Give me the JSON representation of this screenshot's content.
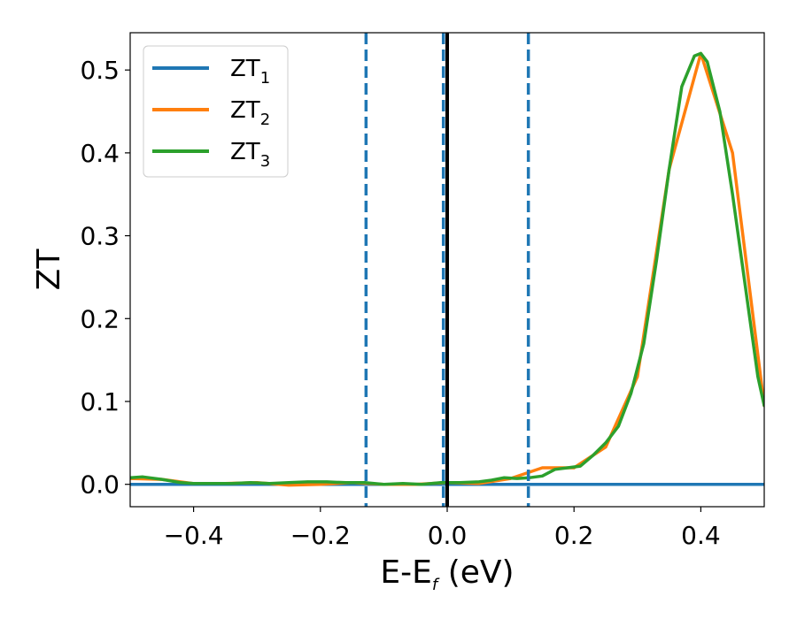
{
  "chart_data": {
    "type": "line",
    "xlabel": {
      "main": "E-E",
      "sub": "f",
      "suffix": " (eV)"
    },
    "ylabel": "ZT",
    "xlim": [
      -0.5,
      0.5
    ],
    "ylim": [
      -0.027,
      0.545
    ],
    "x_ticks": [
      -0.4,
      -0.2,
      0.0,
      0.2,
      0.4
    ],
    "x_tick_labels": [
      "−0.4",
      "−0.2",
      "0.0",
      "0.2",
      "0.4"
    ],
    "y_ticks": [
      0.0,
      0.1,
      0.2,
      0.3,
      0.4,
      0.5
    ],
    "y_tick_labels": [
      "0.0",
      "0.1",
      "0.2",
      "0.3",
      "0.4",
      "0.5"
    ],
    "grid": false,
    "legend": {
      "placement": "top-left"
    },
    "series": [
      {
        "name": "ZT",
        "sub": "1",
        "color": "#1f77b4",
        "x": [
          -0.5,
          -0.3,
          -0.1,
          0.0,
          0.1,
          0.3,
          0.5
        ],
        "y": [
          0.0,
          0.0,
          0.0,
          0.0,
          0.0,
          0.0,
          0.0
        ]
      },
      {
        "name": "ZT",
        "sub": "2",
        "color": "#ff7f0e",
        "x": [
          -0.5,
          -0.45,
          -0.4,
          -0.35,
          -0.3,
          -0.25,
          -0.2,
          -0.15,
          -0.1,
          -0.05,
          0.0,
          0.05,
          0.1,
          0.15,
          0.2,
          0.25,
          0.3,
          0.35,
          0.4,
          0.45,
          0.5
        ],
        "y": [
          0.007,
          0.006,
          0.001,
          0.001,
          0.002,
          -0.001,
          0.0,
          0.002,
          0.0,
          0.0,
          0.002,
          0.001,
          0.007,
          0.02,
          0.02,
          0.045,
          0.13,
          0.38,
          0.52,
          0.4,
          0.095
        ]
      },
      {
        "name": "ZT",
        "sub": "3",
        "color": "#2ca02c",
        "x": [
          -0.5,
          -0.48,
          -0.45,
          -0.42,
          -0.4,
          -0.37,
          -0.34,
          -0.31,
          -0.28,
          -0.25,
          -0.22,
          -0.19,
          -0.16,
          -0.13,
          -0.1,
          -0.07,
          -0.04,
          -0.01,
          0.02,
          0.05,
          0.07,
          0.09,
          0.11,
          0.13,
          0.15,
          0.17,
          0.19,
          0.21,
          0.23,
          0.25,
          0.27,
          0.29,
          0.31,
          0.33,
          0.35,
          0.37,
          0.39,
          0.4,
          0.41,
          0.43,
          0.45,
          0.47,
          0.49,
          0.5
        ],
        "y": [
          0.008,
          0.009,
          0.006,
          0.002,
          0.001,
          0.001,
          0.001,
          0.002,
          0.001,
          0.002,
          0.003,
          0.003,
          0.002,
          0.002,
          0.0,
          0.001,
          0.0,
          0.002,
          0.002,
          0.003,
          0.005,
          0.008,
          0.007,
          0.008,
          0.01,
          0.018,
          0.02,
          0.022,
          0.035,
          0.05,
          0.07,
          0.11,
          0.17,
          0.27,
          0.38,
          0.48,
          0.517,
          0.52,
          0.51,
          0.45,
          0.35,
          0.24,
          0.13,
          0.095
        ]
      }
    ],
    "vertical_lines": [
      {
        "x": -0.128,
        "style": "dashed",
        "color": "#1f77b4"
      },
      {
        "x": -0.006,
        "style": "dashed",
        "color": "#1f77b4"
      },
      {
        "x": 0.0,
        "style": "solid",
        "color": "#000000"
      },
      {
        "x": 0.128,
        "style": "dashed",
        "color": "#1f77b4"
      }
    ]
  }
}
